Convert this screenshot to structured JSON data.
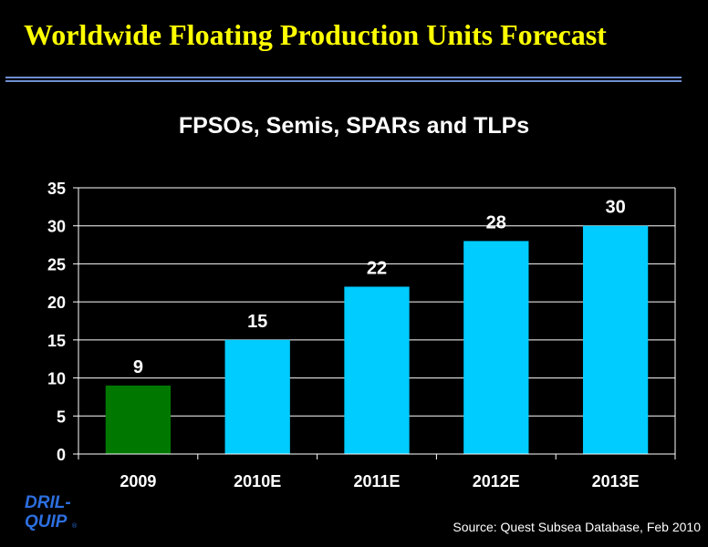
{
  "slide": {
    "title": "Worldwide Floating Production Units Forecast",
    "source": "Source:  Quest Subsea Database, Feb 2010",
    "logo_text": [
      "DRIL-",
      "QUIP"
    ]
  },
  "colors": {
    "background": "#000000",
    "title": "#FFFF00",
    "rule": "#6E8ED0",
    "bar_actual": "#007800",
    "bar_forecast": "#00CCFF",
    "text": "#FFFFFF",
    "logo": "#2D6FE0"
  },
  "chart_data": {
    "type": "bar",
    "title": "FPSOs, Semis, SPARs and TLPs",
    "categories": [
      "2009",
      "2010E",
      "2011E",
      "2012E",
      "2013E"
    ],
    "values": [
      9,
      15,
      22,
      28,
      30
    ],
    "bar_colors": [
      "#007800",
      "#00CCFF",
      "#00CCFF",
      "#00CCFF",
      "#00CCFF"
    ],
    "ylim": [
      0,
      35
    ],
    "yticks": [
      0,
      5,
      10,
      15,
      20,
      25,
      30,
      35
    ],
    "grid": true,
    "data_labels": true,
    "legend": "none"
  }
}
